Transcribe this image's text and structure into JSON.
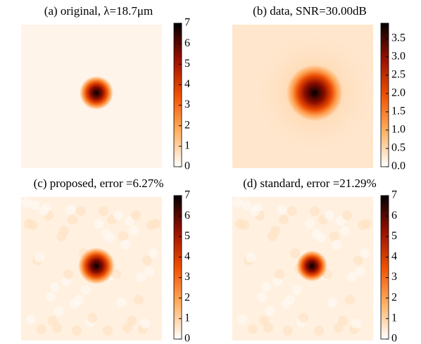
{
  "chart_data": [
    {
      "type": "image",
      "title": "(a) original, λ=18.7μm",
      "zlim": [
        0,
        7
      ],
      "zticks": [
        0,
        1,
        2,
        3,
        4,
        5,
        6,
        7
      ]
    },
    {
      "type": "image",
      "title": "(b) data, SNR=30.00dB",
      "zlim": [
        0,
        3.92
      ],
      "zticks": [
        {
          "value": 0,
          "label": "0.0"
        },
        {
          "value": 0.5,
          "label": "0.5"
        },
        {
          "value": 1,
          "label": "1.0"
        },
        {
          "value": 1.5,
          "label": "1.5"
        },
        {
          "value": 2,
          "label": "2.0"
        },
        {
          "value": 2.5,
          "label": "2.5"
        },
        {
          "value": 3,
          "label": "3.0"
        },
        {
          "value": 3.5,
          "label": "3.5"
        }
      ]
    },
    {
      "type": "image",
      "title": "(c) proposed, error =6.27%",
      "zlim": [
        0,
        7
      ],
      "zticks": [
        0,
        1,
        2,
        3,
        4,
        5,
        6,
        7
      ]
    },
    {
      "type": "image",
      "title": "(d) standard, error =21.29%",
      "zlim": [
        0,
        7
      ],
      "zticks": [
        0,
        1,
        2,
        3,
        4,
        5,
        6,
        7
      ]
    }
  ]
}
